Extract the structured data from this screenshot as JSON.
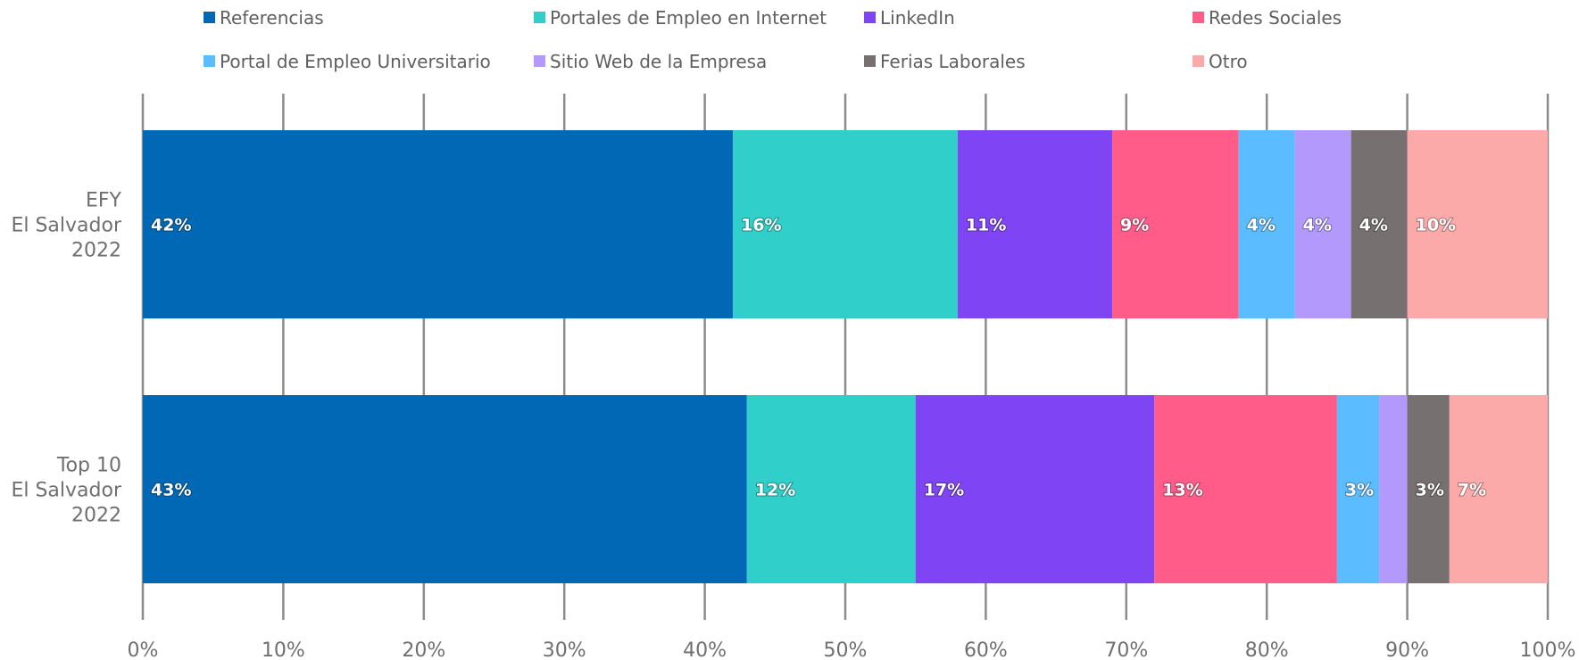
{
  "chart_data": {
    "type": "bar",
    "orientation": "horizontal",
    "stacked": true,
    "title": "",
    "xlabel": "",
    "ylabel": "",
    "xlim": [
      0,
      100
    ],
    "x_ticks": [
      "0%",
      "10%",
      "20%",
      "30%",
      "40%",
      "50%",
      "60%",
      "70%",
      "80%",
      "90%",
      "100%"
    ],
    "grid": "vertical",
    "legend_position": "top",
    "categories": [
      [
        "EFY",
        "El Salvador",
        "2022"
      ],
      [
        "Top 10",
        "El Salvador",
        "2022"
      ]
    ],
    "series": [
      {
        "name": "Referencias",
        "color": "#0068B5",
        "values": [
          42,
          43
        ],
        "labels": [
          "42%",
          "43%"
        ]
      },
      {
        "name": "Portales de Empleo en Internet",
        "color": "#30CFC9",
        "values": [
          16,
          12
        ],
        "labels": [
          "16%",
          "12%"
        ]
      },
      {
        "name": "LinkedIn",
        "color": "#7F45F4",
        "values": [
          11,
          17
        ],
        "labels": [
          "11%",
          "17%"
        ]
      },
      {
        "name": "Redes Sociales",
        "color": "#FF5C8A",
        "values": [
          9,
          13
        ],
        "labels": [
          "9%",
          "13%"
        ]
      },
      {
        "name": "Portal de Empleo Universitario",
        "color": "#5BBCFF",
        "values": [
          4,
          3
        ],
        "labels": [
          "4%",
          "3%"
        ]
      },
      {
        "name": "Sitio Web de la Empresa",
        "color": "#B399FC",
        "values": [
          4,
          2
        ],
        "labels": [
          "4%",
          ""
        ]
      },
      {
        "name": "Ferias Laborales",
        "color": "#777070",
        "values": [
          4,
          3
        ],
        "labels": [
          "4%",
          "3%"
        ]
      },
      {
        "name": "Otro",
        "color": "#FCA9AA",
        "values": [
          10,
          7
        ],
        "labels": [
          "10%",
          "7%"
        ]
      }
    ]
  }
}
